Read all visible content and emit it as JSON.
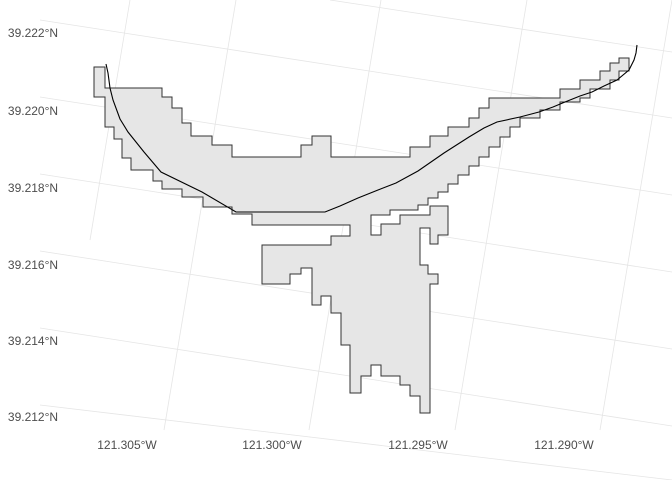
{
  "map": {
    "y_axis": {
      "ticks": [
        {
          "value": 39.222,
          "label": "39.222°N"
        },
        {
          "value": 39.22,
          "label": "39.220°N"
        },
        {
          "value": 39.218,
          "label": "39.218°N"
        },
        {
          "value": 39.216,
          "label": "39.216°N"
        },
        {
          "value": 39.214,
          "label": "39.214°N"
        },
        {
          "value": 39.212,
          "label": "39.212°N"
        }
      ]
    },
    "x_axis": {
      "ticks": [
        {
          "value": -121.305,
          "label": "121.305°W"
        },
        {
          "value": -121.3,
          "label": "121.300°W"
        },
        {
          "value": -121.295,
          "label": "121.295°W"
        },
        {
          "value": -121.29,
          "label": "121.290°W"
        }
      ]
    },
    "grid": true,
    "polygon_fill": "#e6e6e6",
    "polygon_stroke": "#333333",
    "line_stroke": "#000000",
    "grid_color": "#e5e5e5"
  }
}
